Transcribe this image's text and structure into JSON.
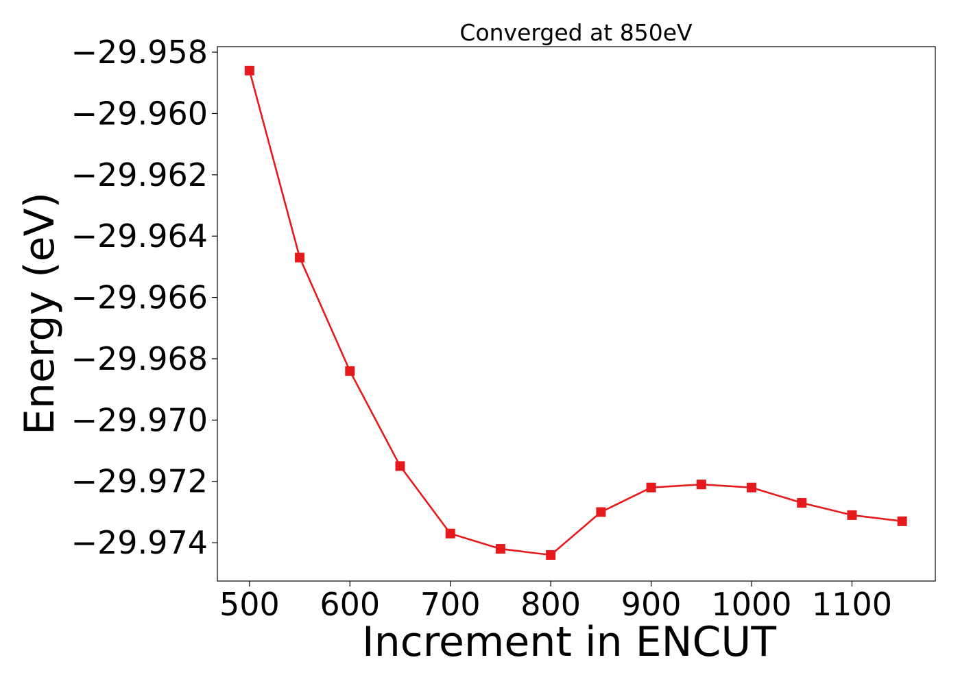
{
  "chart_data": {
    "type": "line",
    "title": "Converged at 850eV",
    "xlabel": "Increment in ENCUT",
    "ylabel": "Energy (eV)",
    "x": [
      500,
      550,
      600,
      650,
      700,
      750,
      800,
      850,
      900,
      950,
      1000,
      1050,
      1100,
      1150
    ],
    "series": [
      {
        "values": [
          -29.9586,
          -29.9647,
          -29.9684,
          -29.9715,
          -29.9737,
          -29.9742,
          -29.9744,
          -29.973,
          -29.9722,
          -29.9721,
          -29.9722,
          -29.9727,
          -29.9731,
          -29.9733
        ],
        "color": "#e41a1c",
        "marker": "square"
      }
    ],
    "xlim": [
      468,
      1183
    ],
    "ylim": [
      -29.97525,
      -29.95782
    ],
    "xticks": [
      500,
      600,
      700,
      800,
      900,
      1000,
      1100
    ],
    "xtick_labels": [
      "500",
      "600",
      "700",
      "800",
      "900",
      "1000",
      "1100"
    ],
    "yticks": [
      -29.958,
      -29.96,
      -29.962,
      -29.964,
      -29.966,
      -29.968,
      -29.97,
      -29.972,
      -29.974
    ],
    "ytick_labels": [
      "−29.958",
      "−29.960",
      "−29.962",
      "−29.964",
      "−29.966",
      "−29.968",
      "−29.970",
      "−29.972",
      "−29.974"
    ],
    "grid": false
  }
}
